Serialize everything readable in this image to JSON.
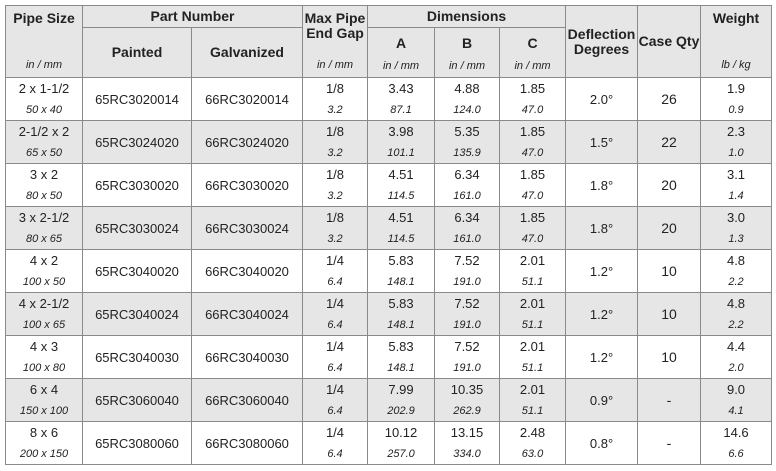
{
  "header": {
    "pipe_size": "Pipe Size",
    "part_number": "Part Number",
    "painted": "Painted",
    "galvanized": "Galvanized",
    "max_gap": "Max Pipe End Gap",
    "dimensions": "Dimensions",
    "a": "A",
    "b": "B",
    "c": "C",
    "deflection": "Deflection Degrees",
    "case_qty": "Case Qty",
    "weight": "Weight",
    "units": {
      "pipe_size": "in / mm",
      "max_gap": "in / mm",
      "a": "in / mm",
      "b": "in / mm",
      "c": "in / mm",
      "weight": "lb / kg"
    }
  },
  "table": {
    "rows": [
      [
        "2 x 1-1/2",
        "50 x 40",
        "65RC3020014",
        "66RC3020014",
        "1/8",
        "3.2",
        "3.43",
        "87.1",
        "4.88",
        "124.0",
        "1.85",
        "47.0",
        "2.0°",
        "26",
        "1.9",
        "0.9"
      ],
      [
        "2-1/2 x 2",
        "65 x 50",
        "65RC3024020",
        "66RC3024020",
        "1/8",
        "3.2",
        "3.98",
        "101.1",
        "5.35",
        "135.9",
        "1.85",
        "47.0",
        "1.5°",
        "22",
        "2.3",
        "1.0"
      ],
      [
        "3 x 2",
        "80 x 50",
        "65RC3030020",
        "66RC3030020",
        "1/8",
        "3.2",
        "4.51",
        "114.5",
        "6.34",
        "161.0",
        "1.85",
        "47.0",
        "1.8°",
        "20",
        "3.1",
        "1.4"
      ],
      [
        "3 x 2-1/2",
        "80 x 65",
        "65RC3030024",
        "66RC3030024",
        "1/8",
        "3.2",
        "4.51",
        "114.5",
        "6.34",
        "161.0",
        "1.85",
        "47.0",
        "1.8°",
        "20",
        "3.0",
        "1.3"
      ],
      [
        "4 x 2",
        "100 x 50",
        "65RC3040020",
        "66RC3040020",
        "1/4",
        "6.4",
        "5.83",
        "148.1",
        "7.52",
        "191.0",
        "2.01",
        "51.1",
        "1.2°",
        "10",
        "4.8",
        "2.2"
      ],
      [
        "4 x 2-1/2",
        "100 x 65",
        "65RC3040024",
        "66RC3040024",
        "1/4",
        "6.4",
        "5.83",
        "148.1",
        "7.52",
        "191.0",
        "2.01",
        "51.1",
        "1.2°",
        "10",
        "4.8",
        "2.2"
      ],
      [
        "4 x 3",
        "100 x 80",
        "65RC3040030",
        "66RC3040030",
        "1/4",
        "6.4",
        "5.83",
        "148.1",
        "7.52",
        "191.0",
        "2.01",
        "51.1",
        "1.2°",
        "10",
        "4.4",
        "2.0"
      ],
      [
        "6 x 4",
        "150 x 100",
        "65RC3060040",
        "66RC3060040",
        "1/4",
        "6.4",
        "7.99",
        "202.9",
        "10.35",
        "262.9",
        "2.01",
        "51.1",
        "0.9°",
        "-",
        "9.0",
        "4.1"
      ],
      [
        "8 x 6",
        "200 x 150",
        "65RC3080060",
        "66RC3080060",
        "1/4",
        "6.4",
        "10.12",
        "257.0",
        "13.15",
        "334.0",
        "2.48",
        "63.0",
        "0.8°",
        "-",
        "14.6",
        "6.6"
      ]
    ]
  }
}
